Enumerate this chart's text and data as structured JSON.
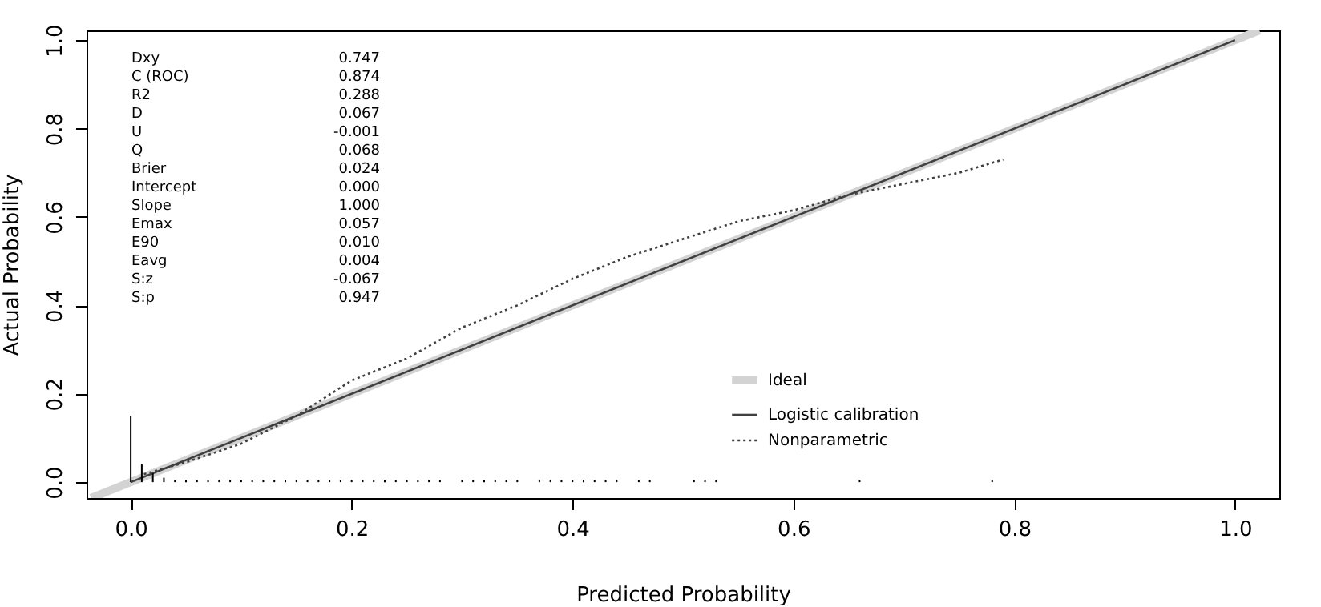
{
  "chart_data": {
    "type": "line",
    "xlabel": "Predicted Probability",
    "ylabel": "Actual Probability",
    "xlim": [
      -0.04,
      1.04
    ],
    "ylim": [
      -0.036,
      1.022
    ],
    "xticks": [
      {
        "value": 0,
        "label": "0.0"
      },
      0.2,
      0.4,
      0.6,
      0.8,
      {
        "value": 1,
        "label": "1.0"
      }
    ],
    "yticks": [
      {
        "value": 0,
        "label": "0.0"
      },
      0.2,
      0.4,
      0.6,
      0.8,
      {
        "value": 1,
        "label": "1.0"
      }
    ],
    "grid": false,
    "legend": "bottom right",
    "marker": "none",
    "series": [
      {
        "name": "Ideal",
        "type": "line",
        "color": "#d3d3d3",
        "line_style": "solid",
        "x": [
          -0.036,
          1.022
        ],
        "values": [
          -0.036,
          1.022
        ]
      },
      {
        "name": "Logistic calibration",
        "type": "line",
        "color": "#404040",
        "line_style": "solid",
        "x": [
          0.0,
          1.0
        ],
        "values": [
          0.0,
          1.0
        ]
      },
      {
        "name": "Nonparametric",
        "type": "line",
        "color": "#404040",
        "line_style": "dotted",
        "x": [
          0.012,
          0.05,
          0.1,
          0.15,
          0.2,
          0.25,
          0.3,
          0.35,
          0.4,
          0.45,
          0.5,
          0.55,
          0.6,
          0.65,
          0.7,
          0.75,
          0.79
        ],
        "values": [
          0.018,
          0.045,
          0.087,
          0.15,
          0.23,
          0.28,
          0.35,
          0.4,
          0.46,
          0.51,
          0.55,
          0.59,
          0.615,
          0.65,
          0.675,
          0.7,
          0.73
        ]
      },
      {
        "type": "bar",
        "color": "#000000",
        "x": [
          0.0,
          0.01,
          0.02,
          0.03,
          0.04,
          0.05,
          0.06,
          0.07,
          0.08,
          0.09,
          0.1,
          0.11,
          0.12,
          0.13,
          0.14,
          0.15,
          0.16,
          0.17,
          0.18,
          0.19,
          0.2,
          0.21,
          0.22,
          0.23,
          0.24,
          0.25,
          0.26,
          0.27,
          0.28,
          0.3,
          0.31,
          0.32,
          0.33,
          0.34,
          0.35,
          0.37,
          0.38,
          0.39,
          0.4,
          0.41,
          0.42,
          0.43,
          0.44,
          0.46,
          0.47,
          0.51,
          0.52,
          0.53,
          0.66,
          0.78
        ],
        "values": [
          0.15,
          0.04,
          0.02,
          0.01,
          0.005,
          0.005,
          0.005,
          0.005,
          0.005,
          0.005,
          0.005,
          0.005,
          0.005,
          0.005,
          0.005,
          0.005,
          0.005,
          0.005,
          0.005,
          0.005,
          0.005,
          0.005,
          0.005,
          0.005,
          0.005,
          0.005,
          0.005,
          0.005,
          0.005,
          0.005,
          0.005,
          0.005,
          0.005,
          0.005,
          0.005,
          0.005,
          0.005,
          0.005,
          0.005,
          0.005,
          0.005,
          0.005,
          0.005,
          0.005,
          0.005,
          0.005,
          0.005,
          0.005,
          0.005,
          0.005
        ]
      }
    ],
    "annotations": [
      "Dxy 0.747",
      "C (ROC) 0.874",
      "R2 0.288",
      "D 0.067",
      "U -0.001",
      "Q 0.068",
      "Brier 0.024",
      "Intercept 0.000",
      "Slope 1.000",
      "Emax 0.057",
      "E90 0.010",
      "Eavg 0.004",
      "S:z -0.067",
      "S:p 0.947"
    ]
  }
}
